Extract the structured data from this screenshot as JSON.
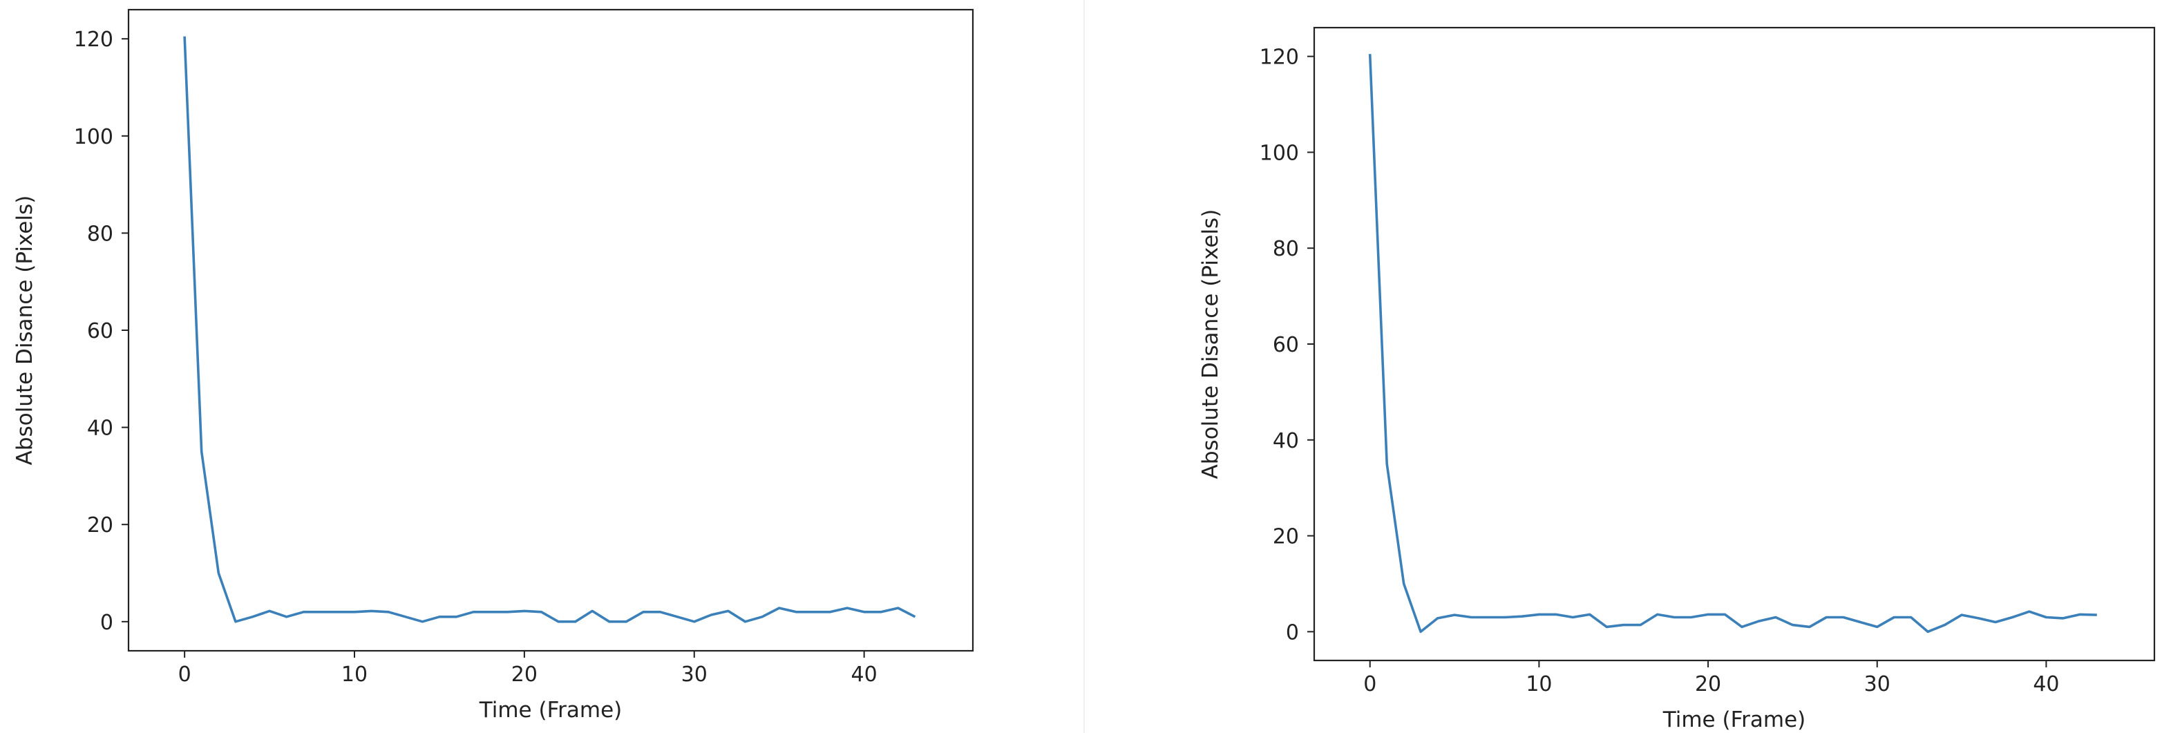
{
  "colors": {
    "line": "#3b80b9",
    "axes": "#222222",
    "background": "#ffffff"
  },
  "chart_data": [
    {
      "type": "line",
      "title": "",
      "xlabel": "Time (Frame)",
      "ylabel": "Absolute Disance (Pixels)",
      "xlim": [
        -3.3,
        46.4
      ],
      "ylim": [
        -6,
        126
      ],
      "xticks": [
        0,
        10,
        20,
        30,
        40
      ],
      "yticks": [
        0,
        20,
        40,
        60,
        80,
        100,
        120
      ],
      "grid": false,
      "series": [
        {
          "x": [
            0,
            1,
            2,
            3,
            4,
            5,
            6,
            7,
            8,
            9,
            10,
            11,
            12,
            13,
            14,
            15,
            16,
            17,
            18,
            19,
            20,
            21,
            22,
            23,
            24,
            25,
            26,
            27,
            28,
            29,
            30,
            31,
            32,
            33,
            34,
            35,
            36,
            37,
            38,
            39,
            40,
            41,
            42,
            43
          ],
          "y": [
            120.5,
            35,
            10,
            0,
            1,
            2.2,
            1,
            2,
            2,
            2,
            2,
            2.2,
            2,
            1,
            0,
            1,
            1,
            2,
            2,
            2,
            2.2,
            2,
            0,
            0,
            2.2,
            0,
            0,
            2,
            2,
            1,
            0,
            1.4,
            2.2,
            0,
            1,
            2.8,
            2,
            2,
            2,
            2.8,
            2,
            2,
            2.8,
            1
          ]
        }
      ]
    },
    {
      "type": "line",
      "title": "",
      "xlabel": "Time (Frame)",
      "ylabel": "Absolute Disance (Pixels)",
      "xlim": [
        -3.3,
        46.4
      ],
      "ylim": [
        -6,
        126
      ],
      "xticks": [
        0,
        10,
        20,
        30,
        40
      ],
      "yticks": [
        0,
        20,
        40,
        60,
        80,
        100,
        120
      ],
      "grid": false,
      "series": [
        {
          "x": [
            0,
            1,
            2,
            3,
            4,
            5,
            6,
            7,
            8,
            9,
            10,
            11,
            12,
            13,
            14,
            15,
            16,
            17,
            18,
            19,
            20,
            21,
            22,
            23,
            24,
            25,
            26,
            27,
            28,
            29,
            30,
            31,
            32,
            33,
            34,
            35,
            36,
            37,
            38,
            39,
            40,
            41,
            42,
            43
          ],
          "y": [
            120.5,
            35,
            10,
            0,
            2.8,
            3.5,
            3,
            3,
            3,
            3.2,
            3.6,
            3.6,
            3,
            3.6,
            1,
            1.4,
            1.4,
            3.6,
            3,
            3,
            3.6,
            3.6,
            1,
            2.2,
            3,
            1.4,
            1,
            3,
            3,
            2,
            1,
            3,
            3,
            0,
            1.4,
            3.5,
            2.8,
            2,
            3,
            4.2,
            3,
            2.8,
            3.6,
            3.5
          ]
        }
      ]
    }
  ]
}
